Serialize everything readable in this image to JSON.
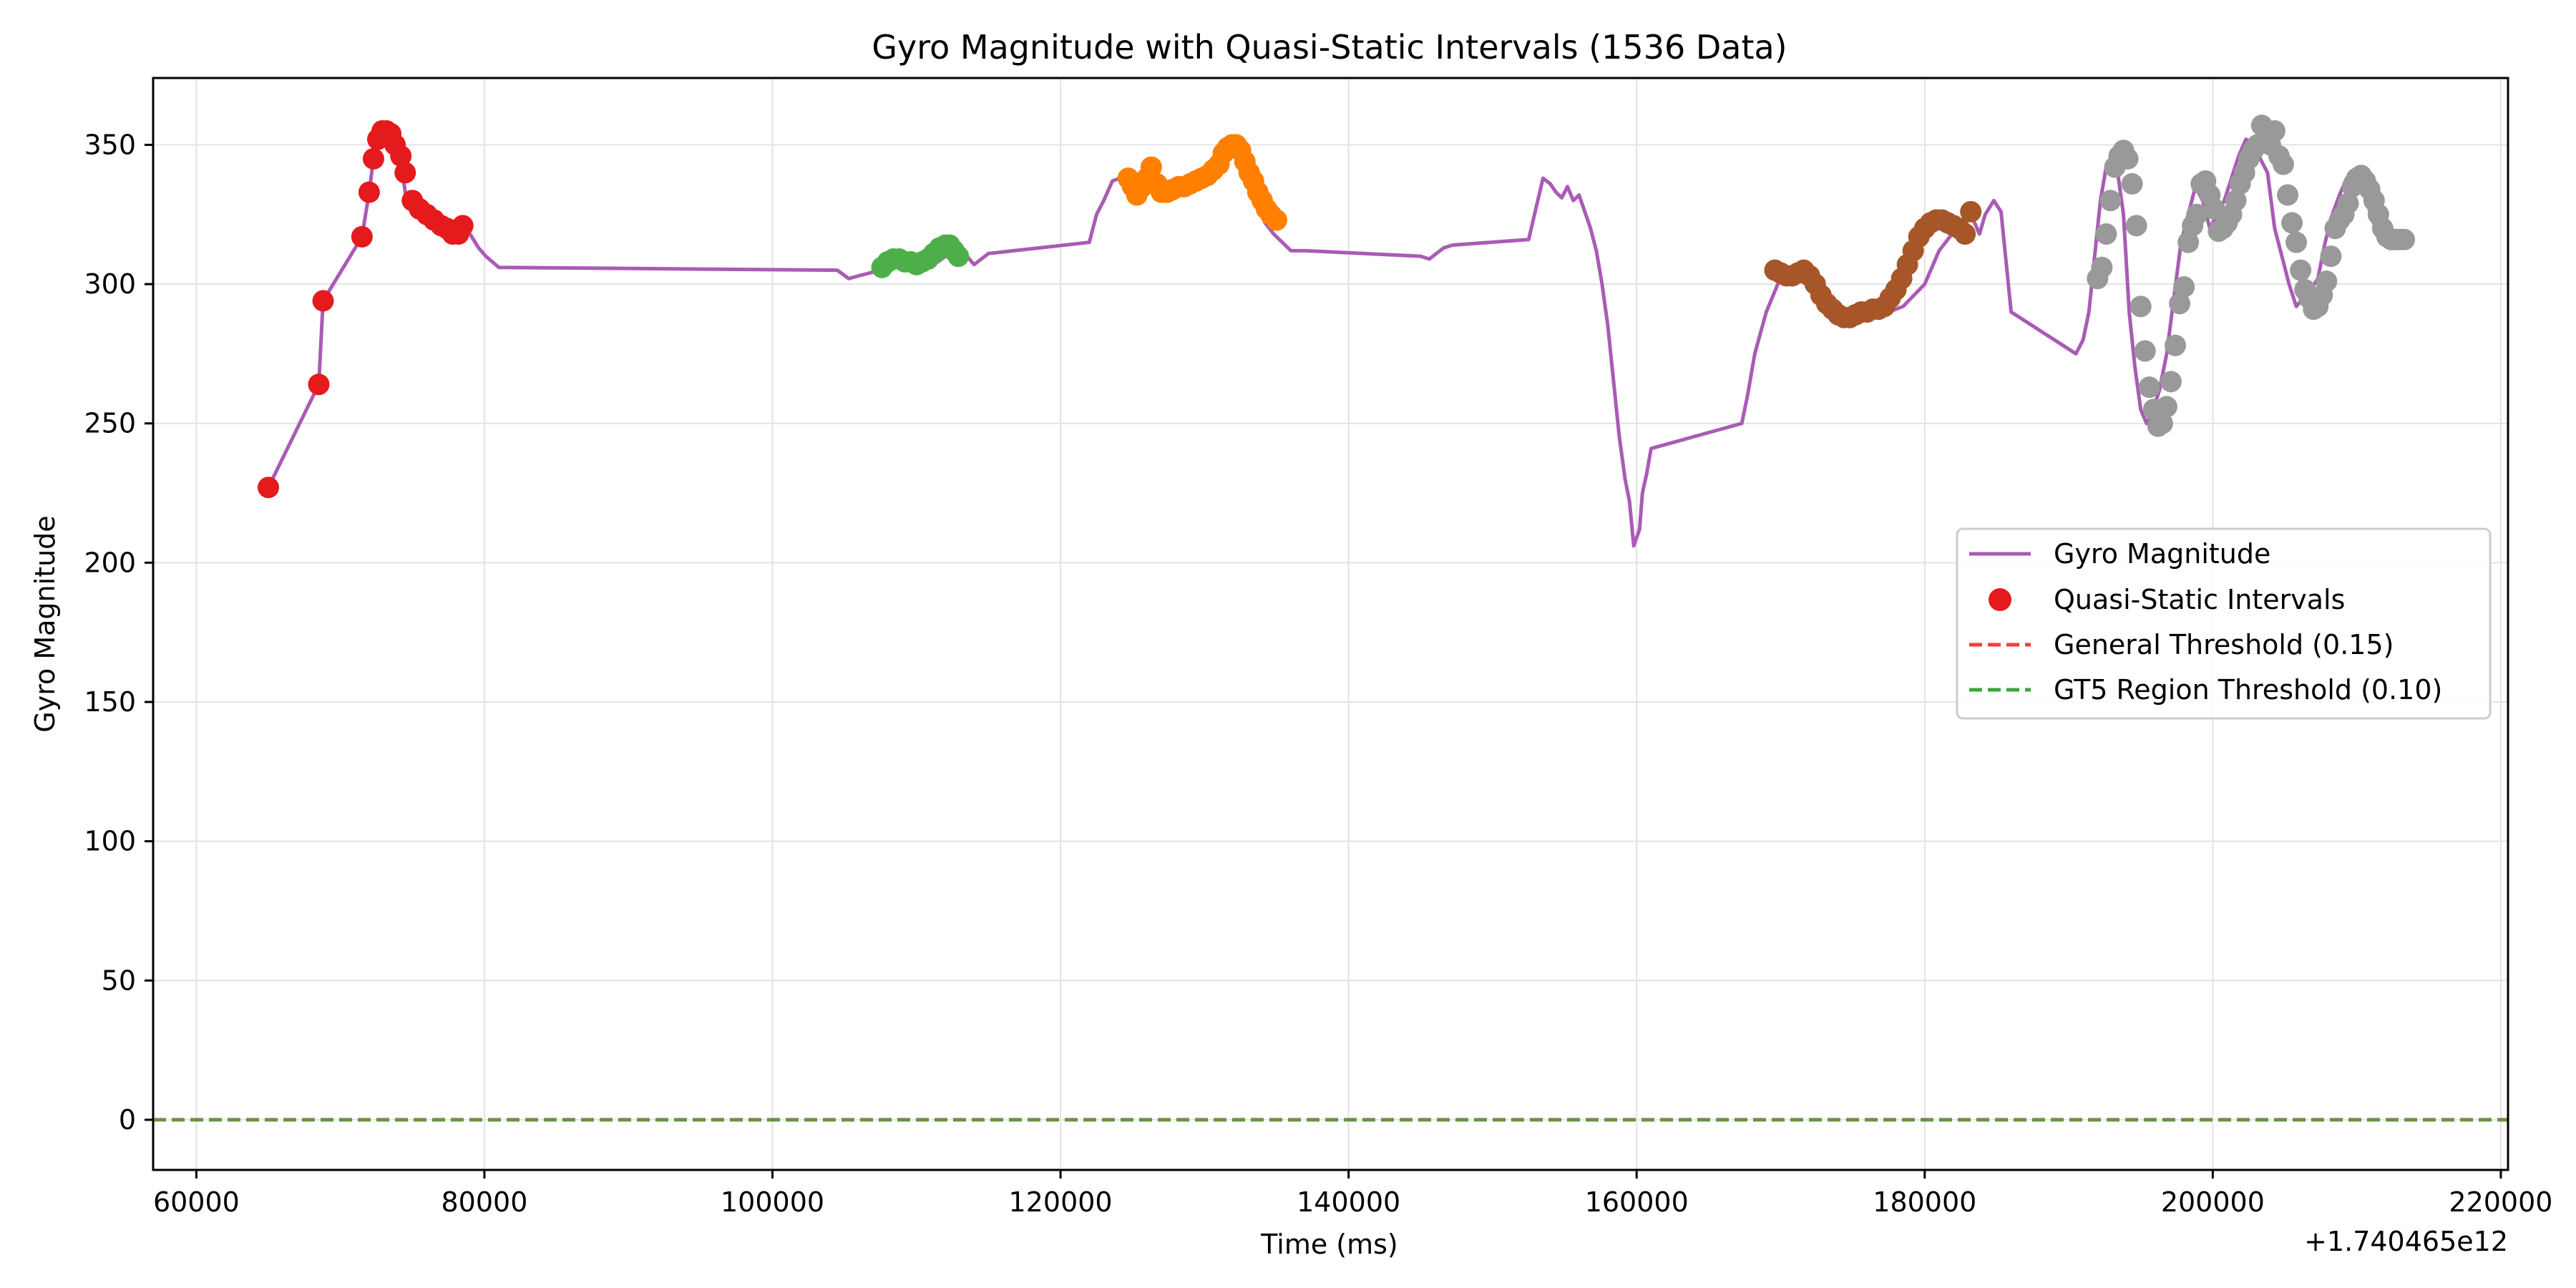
{
  "chart_data": {
    "type": "line",
    "title": "Gyro Magnitude with Quasi-Static Intervals (1536 Data)",
    "xlabel": "Time (ms)",
    "ylabel": "Gyro Magnitude",
    "x_offset_label": "+1.740465e12",
    "xlim": [
      57000,
      220500
    ],
    "ylim": [
      -18,
      374
    ],
    "x_ticks": [
      60000,
      80000,
      100000,
      120000,
      140000,
      160000,
      180000,
      200000,
      220000
    ],
    "x_tick_labels": [
      "60000",
      "80000",
      "100000",
      "120000",
      "140000",
      "160000",
      "180000",
      "200000",
      "220000"
    ],
    "y_ticks": [
      0,
      50,
      100,
      150,
      200,
      250,
      300,
      350
    ],
    "y_tick_labels": [
      "0",
      "50",
      "100",
      "150",
      "200",
      "250",
      "300",
      "350"
    ],
    "grid": true,
    "legend": {
      "placement": "center-right",
      "entries": [
        {
          "label": "Gyro Magnitude",
          "kind": "line",
          "color": "#a95bb5"
        },
        {
          "label": "Quasi-Static Intervals",
          "kind": "marker",
          "color": "#e41a1c"
        },
        {
          "label": "General Threshold (0.15)",
          "kind": "dashed",
          "color": "#ff3b3b"
        },
        {
          "label": "GT5 Region Threshold (0.10)",
          "kind": "dashed",
          "color": "#3aa63a"
        }
      ]
    },
    "series": [
      {
        "name": "Gyro Magnitude",
        "kind": "line",
        "color": "#a95bb5",
        "x": [
          65000,
          68500,
          68800,
          71500,
          72000,
          72300,
          72700,
          73000,
          73300,
          73600,
          74000,
          74300,
          74600,
          75000,
          76000,
          77000,
          77800,
          78300,
          79000,
          79600,
          80100,
          81000,
          104500,
          105300,
          106000,
          107500,
          108000,
          110000,
          111500,
          112500,
          113000,
          113500,
          114000,
          114500,
          115000,
          122000,
          122500,
          123000,
          123600,
          124100,
          124600,
          125000,
          126000,
          127000,
          128500,
          130000,
          131000,
          131700,
          132200,
          132800,
          133500,
          134200,
          134800,
          136000,
          137000,
          145000,
          145600,
          146100,
          146600,
          147200,
          152500,
          153000,
          153500,
          154000,
          154400,
          154800,
          155200,
          155600,
          156000,
          156400,
          156800,
          157200,
          157600,
          158000,
          158400,
          158800,
          159200,
          159500,
          159800,
          160200,
          160400,
          160700,
          161000,
          167300,
          167700,
          168200,
          169000,
          169800,
          170500,
          171500,
          172500,
          174000,
          175500,
          177000,
          178500,
          180000,
          181000,
          182500,
          183300,
          183800,
          184200,
          184800,
          185300,
          186000,
          190500,
          191000,
          191400,
          191800,
          192200,
          192600,
          193000,
          193400,
          193800,
          194200,
          194600,
          195000,
          195400,
          195800,
          196300,
          196800,
          197300,
          197800,
          198300,
          198800,
          199300,
          199800,
          200300,
          200800,
          201300,
          201800,
          202300,
          202800,
          203300,
          203800,
          204300,
          204800,
          205300,
          205800,
          206300,
          206800,
          207300,
          207800,
          208300,
          208800,
          209300,
          209800,
          210300,
          210800,
          211300,
          211800,
          212300,
          212800,
          213200
        ],
        "y": [
          227,
          264,
          294,
          317,
          333,
          345,
          352,
          355,
          355,
          353,
          348,
          340,
          330,
          328,
          325,
          322,
          319,
          320,
          318,
          313,
          310,
          306,
          305,
          302,
          303,
          305,
          307,
          307,
          308,
          312,
          314,
          310,
          307,
          309,
          311,
          315,
          325,
          330,
          337,
          338,
          335,
          336,
          338,
          337,
          336,
          340,
          346,
          350,
          348,
          340,
          330,
          322,
          318,
          312,
          312,
          310,
          309,
          311,
          313,
          314,
          316,
          327,
          338,
          336,
          333,
          331,
          335,
          330,
          332,
          326,
          320,
          312,
          300,
          285,
          265,
          245,
          230,
          222,
          206,
          212,
          225,
          232,
          241,
          250,
          260,
          275,
          290,
          300,
          305,
          302,
          300,
          292,
          289,
          289,
          292,
          300,
          312,
          322,
          324,
          318,
          325,
          330,
          326,
          290,
          275,
          280,
          290,
          310,
          330,
          342,
          346,
          340,
          325,
          290,
          270,
          255,
          250,
          254,
          262,
          275,
          295,
          315,
          325,
          335,
          330,
          320,
          325,
          330,
          338,
          346,
          352,
          350,
          345,
          340,
          320,
          310,
          300,
          292,
          295,
          298,
          302,
          315,
          325,
          332,
          338,
          338,
          335,
          328,
          320,
          316,
          316,
          316,
          316
        ]
      },
      {
        "name": "Quasi-Static Intervals",
        "kind": "scatter",
        "color": "#e41a1c",
        "x": [
          65000,
          68500,
          68800,
          71500,
          72000,
          72300,
          72600,
          72900,
          73200,
          73500,
          73800,
          74200,
          74500,
          75000,
          75500,
          76000,
          76500,
          77000,
          77400,
          77800,
          78200,
          78500
        ],
        "y": [
          227,
          264,
          294,
          317,
          333,
          345,
          352,
          355,
          355,
          354,
          350,
          346,
          340,
          330,
          327,
          325,
          323,
          321,
          320,
          318,
          318,
          321
        ]
      },
      {
        "name": "",
        "kind": "scatter",
        "color": "#4daf4a",
        "x": [
          107600,
          108000,
          108400,
          108800,
          109200,
          109600,
          110000,
          110400,
          110800,
          111200,
          111600,
          112000,
          112300,
          112600,
          112900
        ],
        "y": [
          306,
          308,
          309,
          309,
          308,
          308,
          307,
          308,
          309,
          311,
          313,
          314,
          314,
          312,
          310
        ]
      },
      {
        "name": "",
        "kind": "scatter",
        "color": "#ff7f00",
        "x": [
          124700,
          125000,
          125300,
          125700,
          126000,
          126300,
          126700,
          127000,
          127400,
          127800,
          128200,
          128600,
          129000,
          129400,
          129800,
          130200,
          130600,
          131000,
          131300,
          131600,
          131900,
          132200,
          132500,
          132800,
          133100,
          133400,
          133700,
          134000,
          134300,
          134600,
          135000
        ],
        "y": [
          338,
          335,
          332,
          335,
          338,
          342,
          336,
          333,
          333,
          334,
          335,
          335,
          336,
          337,
          338,
          339,
          341,
          343,
          347,
          349,
          350,
          350,
          348,
          344,
          340,
          337,
          333,
          330,
          327,
          325,
          323
        ]
      },
      {
        "name": "",
        "kind": "scatter",
        "color": "#a65628",
        "x": [
          169600,
          170000,
          170400,
          170800,
          171200,
          171600,
          172000,
          172400,
          172800,
          173200,
          173600,
          174000,
          174400,
          174800,
          175200,
          175600,
          176000,
          176400,
          176800,
          177200,
          177600,
          178000,
          178400,
          178800,
          179200,
          179600,
          180000,
          180400,
          180800,
          181200,
          181600,
          182000,
          182400,
          182800,
          183200
        ],
        "y": [
          305,
          304,
          303,
          303,
          304,
          305,
          303,
          300,
          296,
          293,
          291,
          289,
          288,
          288,
          289,
          290,
          290,
          291,
          291,
          292,
          295,
          298,
          302,
          307,
          312,
          317,
          320,
          322,
          323,
          323,
          322,
          321,
          320,
          318,
          326
        ]
      },
      {
        "name": "",
        "kind": "scatter",
        "color": "#999999",
        "x": [
          192000,
          192300,
          192600,
          192900,
          193200,
          193500,
          193800,
          194100,
          194400,
          194700,
          195000,
          195300,
          195600,
          195900,
          196200,
          196500,
          196800,
          197100,
          197400,
          197700,
          198000,
          198300,
          198600,
          198900,
          199200,
          199500,
          199800,
          200100,
          200400,
          200700,
          201000,
          201300,
          201600,
          201900,
          202200,
          202500,
          202800,
          203100,
          203400,
          203700,
          204000,
          204300,
          204600,
          204900,
          205200,
          205500,
          205800,
          206100,
          206400,
          206700,
          207000,
          207300,
          207600,
          207900,
          208200,
          208500,
          208800,
          209100,
          209400,
          209700,
          210000,
          210300,
          210600,
          210900,
          211200,
          211500,
          211800,
          212100,
          212400,
          212700,
          213000,
          213300
        ],
        "y": [
          302,
          306,
          318,
          330,
          342,
          346,
          348,
          345,
          336,
          321,
          292,
          276,
          263,
          255,
          249,
          250,
          256,
          265,
          278,
          293,
          299,
          315,
          321,
          325,
          336,
          337,
          332,
          327,
          319,
          320,
          322,
          325,
          330,
          336,
          340,
          345,
          348,
          350,
          357,
          353,
          350,
          355,
          346,
          343,
          332,
          322,
          315,
          305,
          298,
          295,
          291,
          292,
          296,
          301,
          310,
          320,
          323,
          325,
          329,
          335,
          338,
          339,
          337,
          334,
          330,
          325,
          320,
          317,
          316,
          316,
          316,
          316
        ]
      },
      {
        "name": "General Threshold (0.15)",
        "kind": "hline",
        "color": "#ff3b3b",
        "y": [
          0
        ]
      },
      {
        "name": "GT5 Region Threshold (0.10)",
        "kind": "hline",
        "color": "#3aa63a",
        "y": [
          0
        ]
      }
    ]
  }
}
